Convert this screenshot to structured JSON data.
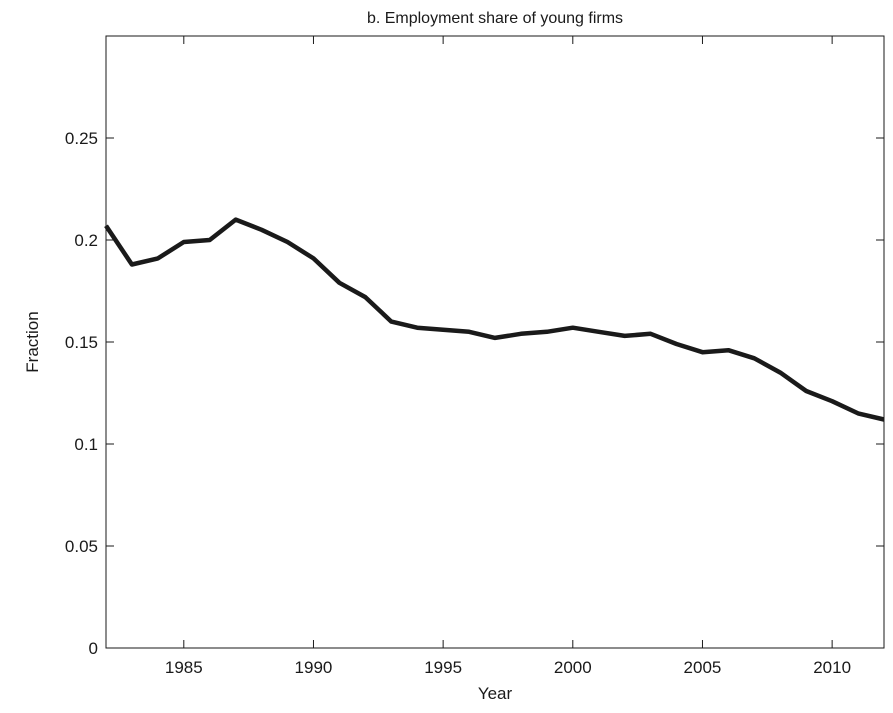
{
  "chart_data": {
    "type": "line",
    "title": "b. Employment share of young firms",
    "xlabel": "Year",
    "ylabel": "Fraction",
    "xlim": [
      1982,
      2012
    ],
    "ylim": [
      0,
      0.3
    ],
    "x_ticks": [
      1985,
      1990,
      1995,
      2000,
      2005,
      2010
    ],
    "x_tick_labels": [
      "1985",
      "1990",
      "1995",
      "2000",
      "2005",
      "2010"
    ],
    "y_ticks": [
      0,
      0.05,
      0.1,
      0.15,
      0.2,
      0.25
    ],
    "y_tick_labels": [
      "0",
      "0.05",
      "0.1",
      "0.15",
      "0.2",
      "0.25"
    ],
    "grid": false,
    "line_color": "#1a1a1a",
    "series": [
      {
        "x": [
          1982,
          1983,
          1984,
          1985,
          1986,
          1987,
          1988,
          1989,
          1990,
          1991,
          1992,
          1993,
          1994,
          1995,
          1996,
          1997,
          1998,
          1999,
          2000,
          2001,
          2002,
          2003,
          2004,
          2005,
          2006,
          2007,
          2008,
          2009,
          2010,
          2011,
          2012
        ],
        "values": [
          0.207,
          0.188,
          0.191,
          0.199,
          0.2,
          0.21,
          0.205,
          0.199,
          0.191,
          0.179,
          0.172,
          0.16,
          0.157,
          0.156,
          0.155,
          0.152,
          0.154,
          0.155,
          0.157,
          0.155,
          0.153,
          0.154,
          0.149,
          0.145,
          0.146,
          0.142,
          0.135,
          0.126,
          0.121,
          0.115,
          0.112
        ]
      }
    ]
  }
}
